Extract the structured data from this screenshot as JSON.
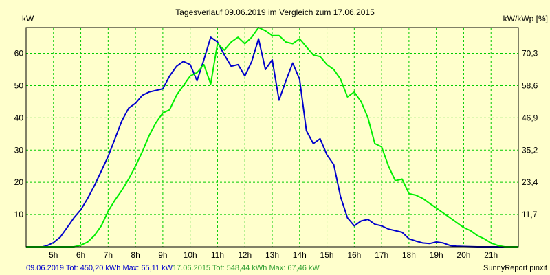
{
  "chart_data": {
    "type": "line",
    "title": "Tagesverlauf 09.06.2019 im Vergleich zum 17.06.2015",
    "ylabel_left": "kW",
    "ylabel_right": "kW/kWp [%]",
    "xlim": [
      4,
      22
    ],
    "ylim": [
      0,
      68
    ],
    "x_ticks": [
      5,
      6,
      7,
      8,
      9,
      10,
      11,
      12,
      13,
      14,
      15,
      16,
      17,
      18,
      19,
      20,
      21
    ],
    "x_tick_labels": [
      "5h",
      "6h",
      "7h",
      "8h",
      "9h",
      "10h",
      "11h",
      "12h",
      "13h",
      "14h",
      "15h",
      "16h",
      "17h",
      "18h",
      "19h",
      "20h",
      "21h"
    ],
    "y_ticks_left": [
      10,
      20,
      30,
      40,
      50,
      60
    ],
    "y_tick_labels_left": [
      "10",
      "20",
      "30",
      "40",
      "50",
      "60"
    ],
    "y_ticks_right_at": [
      10,
      20,
      30,
      40,
      50,
      60
    ],
    "y_tick_labels_right": [
      "11,7",
      "23,4",
      "35,2",
      "46,9",
      "58,6",
      "70,3"
    ],
    "grid": true,
    "colors": {
      "background": "#FFFFCC",
      "grid": "#00CC00",
      "axis": "#000000"
    },
    "series": [
      {
        "key": "s2019",
        "color": "#0000CC",
        "points": [
          [
            4.0,
            0.0
          ],
          [
            4.6,
            0.0
          ],
          [
            4.75,
            0.3
          ],
          [
            5.0,
            1.3
          ],
          [
            5.25,
            3.0
          ],
          [
            5.5,
            6.0
          ],
          [
            5.75,
            9.0
          ],
          [
            6.0,
            11.5
          ],
          [
            6.25,
            15.0
          ],
          [
            6.5,
            19.0
          ],
          [
            6.75,
            23.5
          ],
          [
            7.0,
            28.0
          ],
          [
            7.25,
            33.5
          ],
          [
            7.5,
            39.0
          ],
          [
            7.75,
            43.0
          ],
          [
            8.0,
            44.5
          ],
          [
            8.25,
            47.0
          ],
          [
            8.5,
            48.0
          ],
          [
            8.75,
            48.5
          ],
          [
            9.0,
            49.0
          ],
          [
            9.25,
            53.0
          ],
          [
            9.5,
            56.0
          ],
          [
            9.75,
            57.5
          ],
          [
            10.0,
            56.5
          ],
          [
            10.25,
            51.5
          ],
          [
            10.5,
            58.0
          ],
          [
            10.75,
            65.0
          ],
          [
            11.0,
            63.5
          ],
          [
            11.25,
            59.5
          ],
          [
            11.5,
            56.0
          ],
          [
            11.75,
            56.5
          ],
          [
            12.0,
            53.0
          ],
          [
            12.25,
            57.5
          ],
          [
            12.5,
            64.5
          ],
          [
            12.75,
            55.0
          ],
          [
            13.0,
            58.0
          ],
          [
            13.25,
            45.5
          ],
          [
            13.5,
            51.5
          ],
          [
            13.75,
            57.0
          ],
          [
            14.0,
            52.0
          ],
          [
            14.25,
            36.0
          ],
          [
            14.5,
            32.0
          ],
          [
            14.75,
            33.5
          ],
          [
            15.0,
            28.5
          ],
          [
            15.25,
            25.5
          ],
          [
            15.5,
            15.5
          ],
          [
            15.75,
            9.0
          ],
          [
            16.0,
            6.5
          ],
          [
            16.25,
            8.0
          ],
          [
            16.5,
            8.5
          ],
          [
            16.75,
            7.0
          ],
          [
            17.0,
            6.5
          ],
          [
            17.25,
            5.5
          ],
          [
            17.5,
            5.0
          ],
          [
            17.75,
            4.5
          ],
          [
            18.0,
            2.5
          ],
          [
            18.25,
            1.8
          ],
          [
            18.5,
            1.2
          ],
          [
            18.75,
            1.0
          ],
          [
            19.0,
            1.5
          ],
          [
            19.25,
            1.2
          ],
          [
            19.5,
            0.4
          ],
          [
            19.75,
            0.2
          ],
          [
            20.0,
            0.1
          ],
          [
            20.5,
            0.0
          ],
          [
            21.5,
            0.0
          ],
          [
            22.0,
            0.0
          ]
        ]
      },
      {
        "key": "s2015",
        "color": "#00EE00",
        "points": [
          [
            4.0,
            0.0
          ],
          [
            5.75,
            0.0
          ],
          [
            6.0,
            0.5
          ],
          [
            6.25,
            1.5
          ],
          [
            6.5,
            3.5
          ],
          [
            6.75,
            6.5
          ],
          [
            7.0,
            11.0
          ],
          [
            7.25,
            14.5
          ],
          [
            7.5,
            17.5
          ],
          [
            7.75,
            21.0
          ],
          [
            8.0,
            25.0
          ],
          [
            8.25,
            29.5
          ],
          [
            8.5,
            34.5
          ],
          [
            8.75,
            38.5
          ],
          [
            9.0,
            41.5
          ],
          [
            9.25,
            42.5
          ],
          [
            9.5,
            47.0
          ],
          [
            9.75,
            50.0
          ],
          [
            10.0,
            53.0
          ],
          [
            10.25,
            54.0
          ],
          [
            10.5,
            56.5
          ],
          [
            10.75,
            50.5
          ],
          [
            11.0,
            63.0
          ],
          [
            11.25,
            61.0
          ],
          [
            11.5,
            63.5
          ],
          [
            11.75,
            65.0
          ],
          [
            12.0,
            63.0
          ],
          [
            12.25,
            65.0
          ],
          [
            12.5,
            68.0
          ],
          [
            12.75,
            67.0
          ],
          [
            13.0,
            65.5
          ],
          [
            13.25,
            65.5
          ],
          [
            13.5,
            63.5
          ],
          [
            13.75,
            63.0
          ],
          [
            14.0,
            64.5
          ],
          [
            14.25,
            62.0
          ],
          [
            14.5,
            59.5
          ],
          [
            14.75,
            59.0
          ],
          [
            15.0,
            56.5
          ],
          [
            15.25,
            55.0
          ],
          [
            15.5,
            52.0
          ],
          [
            15.75,
            46.5
          ],
          [
            16.0,
            48.0
          ],
          [
            16.25,
            45.0
          ],
          [
            16.5,
            40.0
          ],
          [
            16.75,
            32.0
          ],
          [
            17.0,
            31.0
          ],
          [
            17.25,
            25.0
          ],
          [
            17.5,
            20.5
          ],
          [
            17.75,
            21.0
          ],
          [
            18.0,
            16.5
          ],
          [
            18.25,
            16.0
          ],
          [
            18.5,
            15.0
          ],
          [
            18.75,
            13.5
          ],
          [
            19.0,
            12.0
          ],
          [
            19.25,
            10.5
          ],
          [
            19.5,
            9.0
          ],
          [
            19.75,
            7.5
          ],
          [
            20.0,
            6.0
          ],
          [
            20.25,
            5.0
          ],
          [
            20.5,
            3.5
          ],
          [
            20.75,
            2.5
          ],
          [
            21.0,
            1.2
          ],
          [
            21.25,
            0.4
          ],
          [
            21.5,
            0.0
          ],
          [
            22.0,
            0.0
          ]
        ]
      }
    ]
  },
  "footer": {
    "s2019": "09.06.2019 Tot: 450,20 kWh Max: 65,11 kW",
    "s2015": "17.06.2015 Tot: 548,44 kWh Max: 67,46 kW",
    "credit": "SunnyReport pinxit"
  }
}
